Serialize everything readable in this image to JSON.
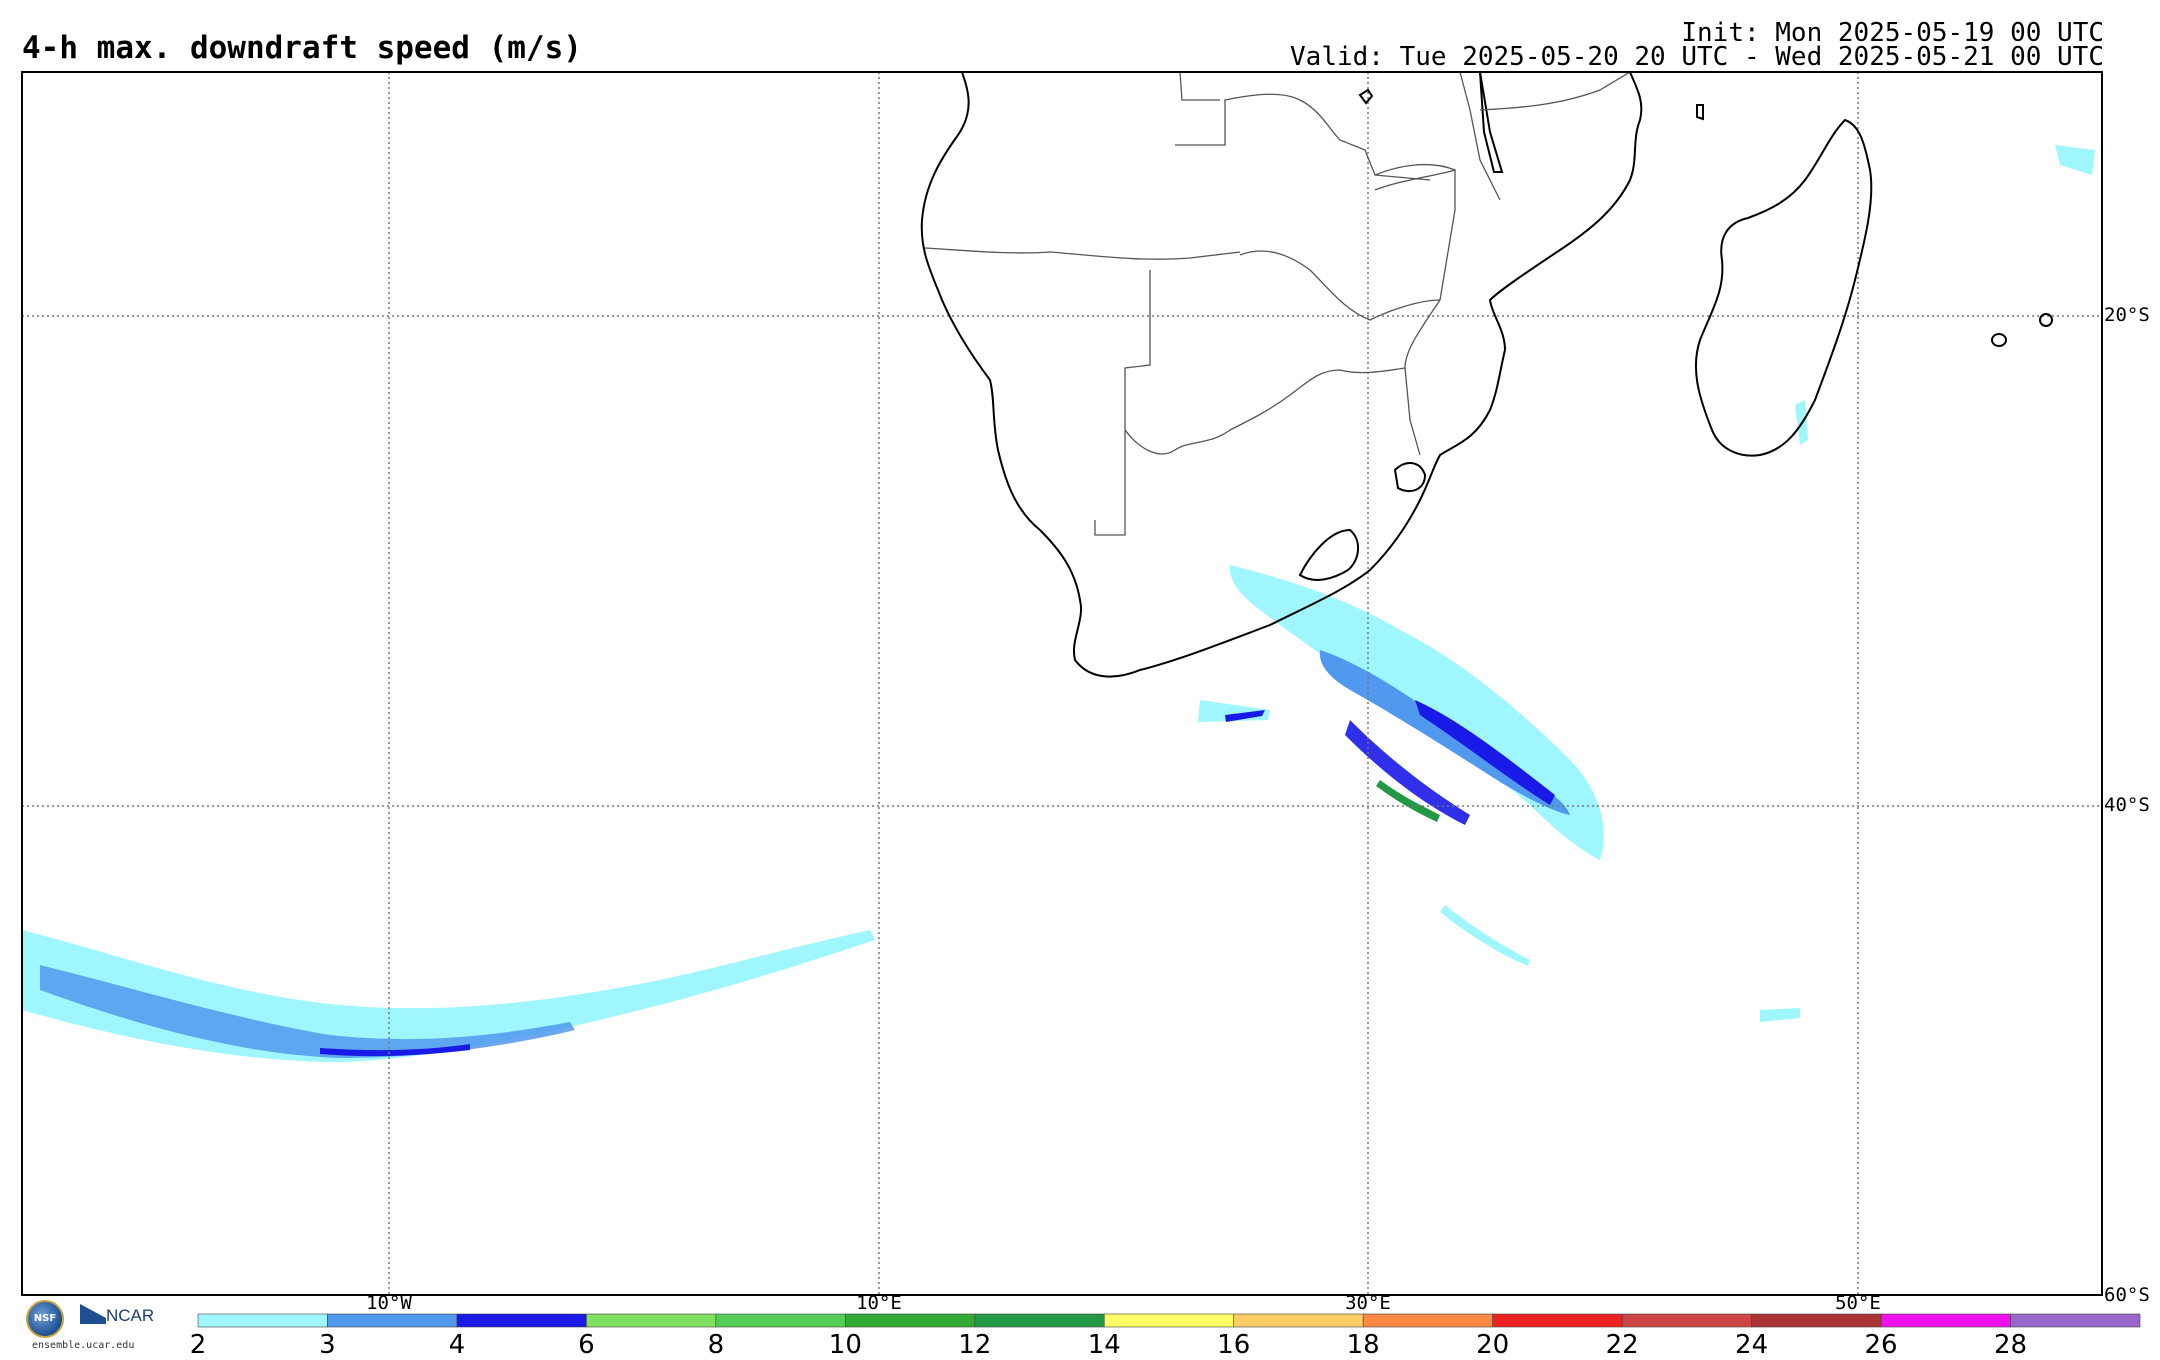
{
  "header": {
    "title": "4-h max. downdraft speed (m/s)",
    "init": "Init: Mon 2025-05-19 00 UTC",
    "valid": "Valid: Tue 2025-05-20 20 UTC - Wed 2025-05-21 00 UTC"
  },
  "map": {
    "lon_labels": [
      "10°W",
      "10°E",
      "30°E",
      "50°E"
    ],
    "lat_labels": [
      "20°S",
      "40°S",
      "60°S"
    ],
    "grid": true,
    "colors": {
      "coast": "#000000",
      "border": "#555555",
      "grid": "#777777"
    }
  },
  "colorbar": {
    "ticks": [
      "2",
      "3",
      "4",
      "6",
      "8",
      "10",
      "12",
      "14",
      "16",
      "18",
      "20",
      "22",
      "24",
      "26",
      "28"
    ],
    "colors": [
      "#9ff6ff",
      "#5199ee",
      "#1a1ae8",
      "#80e060",
      "#55cc55",
      "#33aa33",
      "#229944",
      "#ffff66",
      "#ffcc66",
      "#ff8844",
      "#ee2222",
      "#cc4444",
      "#aa3333",
      "#ee11ee",
      "#9966cc"
    ]
  },
  "logos": {
    "nsf_icon": "nsf-logo-icon",
    "ncar": "NCAR",
    "site": "ensemble.ucar.edu"
  }
}
